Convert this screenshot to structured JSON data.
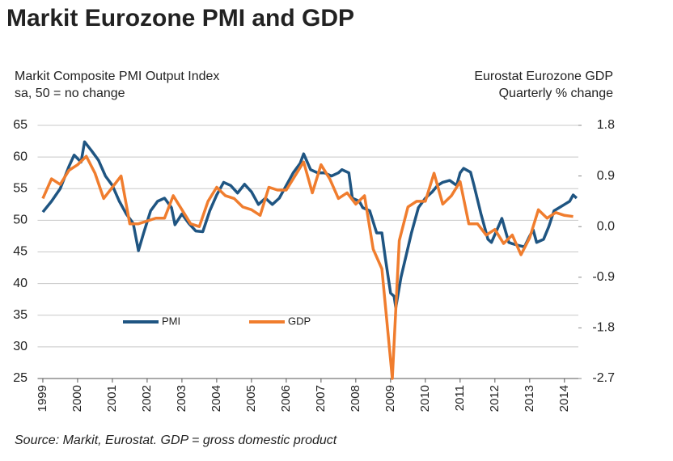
{
  "chart_data": {
    "type": "line",
    "title": "Markit Eurozone PMI and GDP",
    "ylabel": [
      "Markit Composite PMI Output Index",
      "sa, 50 = no change"
    ],
    "y2label": [
      "Eurostat Eurozone GDP",
      "Quarterly % change"
    ],
    "source": "Source: Markit, Eurostat. GDP = gross domestic product",
    "xlim": [
      1998.85,
      2014.4
    ],
    "xticks": [
      1999,
      2000,
      2001,
      2002,
      2003,
      2004,
      2005,
      2006,
      2007,
      2008,
      2009,
      2010,
      2011,
      2012,
      2013,
      2014
    ],
    "ylim": [
      25,
      65
    ],
    "yticks": [
      25,
      30,
      35,
      40,
      45,
      50,
      55,
      60,
      65
    ],
    "y2lim": [
      -2.7,
      1.8
    ],
    "y2ticks": [
      -2.7,
      -1.8,
      -0.9,
      {
        "value": 0,
        "label": "0.0"
      },
      0.9,
      1.8
    ],
    "grid": true,
    "series": [
      {
        "name": "PMI",
        "color": "#1f5582",
        "x": [
          1999.0,
          1999.25,
          1999.5,
          1999.75,
          1999.9,
          2000.1,
          2000.2,
          2000.4,
          2000.6,
          2000.8,
          2001.0,
          2001.2,
          2001.4,
          2001.6,
          2001.75,
          2001.9,
          2002.1,
          2002.3,
          2002.5,
          2002.7,
          2002.8,
          2003.0,
          2003.2,
          2003.4,
          2003.6,
          2003.8,
          2004.0,
          2004.2,
          2004.4,
          2004.6,
          2004.8,
          2005.0,
          2005.2,
          2005.4,
          2005.6,
          2005.8,
          2006.0,
          2006.2,
          2006.4,
          2006.5,
          2006.7,
          2006.9,
          2007.1,
          2007.3,
          2007.5,
          2007.6,
          2007.8,
          2007.9,
          2008.1,
          2008.2,
          2008.4,
          2008.6,
          2008.75,
          2008.85,
          2009.0,
          2009.1,
          2009.15,
          2009.3,
          2009.45,
          2009.6,
          2009.8,
          2010.0,
          2010.2,
          2010.35,
          2010.5,
          2010.7,
          2010.9,
          2011.0,
          2011.1,
          2011.3,
          2011.4,
          2011.6,
          2011.8,
          2011.9,
          2012.1,
          2012.2,
          2012.4,
          2012.5,
          2012.7,
          2012.85,
          2013.0,
          2013.1,
          2013.2,
          2013.4,
          2013.55,
          2013.7,
          2013.85,
          2014.0,
          2014.15,
          2014.25,
          2014.35
        ],
        "values": [
          51.3,
          53,
          55,
          58.5,
          60.3,
          59.2,
          62.4,
          61,
          59.5,
          57,
          55.5,
          53,
          51,
          49.5,
          45.2,
          48,
          51.5,
          53,
          53.5,
          52,
          49.3,
          51,
          49.5,
          48.3,
          48.2,
          51.5,
          54,
          56,
          55.5,
          54.3,
          55.7,
          54.5,
          52.5,
          53.5,
          52.5,
          53.5,
          55.5,
          57.5,
          59,
          60.5,
          58,
          57.5,
          57.5,
          57,
          57.5,
          58,
          57.5,
          53.5,
          53,
          52,
          51.5,
          48,
          48,
          44,
          38.5,
          38,
          36.2,
          41,
          44.5,
          48,
          52,
          53.5,
          54.5,
          55.5,
          56,
          56.3,
          55.5,
          57.5,
          58.2,
          57.6,
          55.5,
          51,
          47,
          46.5,
          49,
          50.3,
          46.5,
          46.3,
          46,
          45.8,
          47.5,
          48.5,
          46.5,
          47,
          49,
          51.5,
          52,
          52.5,
          53,
          54,
          53.5
        ]
      },
      {
        "name": "GDP",
        "color": "#f07d2e",
        "axis": "y2",
        "x": [
          1999.0,
          1999.25,
          1999.5,
          1999.75,
          2000.0,
          2000.25,
          2000.5,
          2000.75,
          2001.0,
          2001.25,
          2001.5,
          2001.75,
          2002.0,
          2002.25,
          2002.5,
          2002.75,
          2003.0,
          2003.25,
          2003.5,
          2003.75,
          2004.0,
          2004.25,
          2004.5,
          2004.75,
          2005.0,
          2005.25,
          2005.5,
          2005.75,
          2006.0,
          2006.25,
          2006.5,
          2006.75,
          2007.0,
          2007.25,
          2007.5,
          2007.75,
          2008.0,
          2008.25,
          2008.5,
          2008.75,
          2009.05,
          2009.25,
          2009.5,
          2009.75,
          2010.0,
          2010.25,
          2010.5,
          2010.75,
          2011.0,
          2011.25,
          2011.5,
          2011.75,
          2012.0,
          2012.25,
          2012.5,
          2012.75,
          2013.0,
          2013.25,
          2013.5,
          2013.75,
          2014.0,
          2014.25
        ],
        "values": [
          0.5,
          0.85,
          0.75,
          1.0,
          1.1,
          1.25,
          0.95,
          0.5,
          0.7,
          0.9,
          0.05,
          0.05,
          0.1,
          0.15,
          0.15,
          0.55,
          0.3,
          0.05,
          0.0,
          0.45,
          0.7,
          0.55,
          0.5,
          0.35,
          0.3,
          0.2,
          0.7,
          0.65,
          0.65,
          0.9,
          1.15,
          0.6,
          1.1,
          0.85,
          0.5,
          0.6,
          0.4,
          0.55,
          -0.4,
          -0.75,
          -2.7,
          -0.25,
          0.35,
          0.45,
          0.45,
          0.95,
          0.4,
          0.55,
          0.8,
          0.05,
          0.05,
          -0.15,
          -0.05,
          -0.3,
          -0.15,
          -0.5,
          -0.2,
          0.3,
          0.15,
          0.25,
          0.2,
          0.18
        ]
      }
    ]
  }
}
